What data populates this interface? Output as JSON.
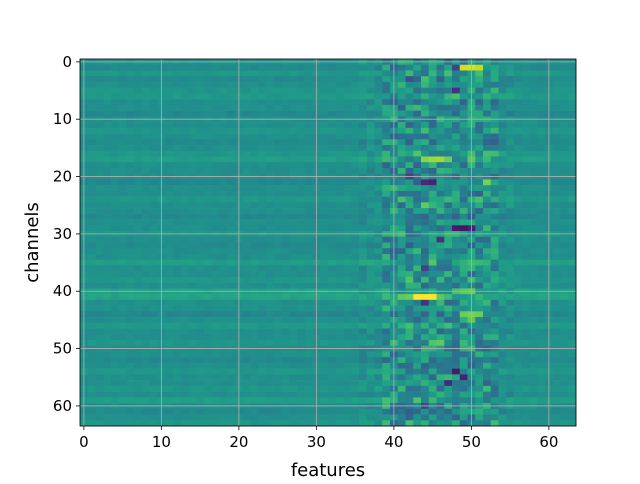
{
  "chart_data": {
    "type": "heatmap",
    "title": "",
    "xlabel": "features",
    "ylabel": "channels",
    "xlim": [
      -0.5,
      63.5
    ],
    "ylim": [
      63.5,
      -0.5
    ],
    "y_inverted": true,
    "x_ticks": [
      0,
      10,
      20,
      30,
      40,
      50,
      60
    ],
    "y_ticks": [
      0,
      10,
      20,
      30,
      40,
      50,
      60
    ],
    "x_tick_labels": [
      "0",
      "10",
      "20",
      "30",
      "40",
      "50",
      "60"
    ],
    "y_tick_labels": [
      "0",
      "10",
      "20",
      "30",
      "40",
      "50",
      "60"
    ],
    "grid": true,
    "colormap": "viridis",
    "value_range": [
      -1,
      1
    ],
    "dimensions": {
      "features": 64,
      "channels": 64
    },
    "background_value": 0.0,
    "row_offsets": [
      {
        "channel": 0,
        "value": 0.02
      },
      {
        "channel": 1,
        "value": -0.05
      },
      {
        "channel": 2,
        "value": 0.06
      },
      {
        "channel": 3,
        "value": -0.04
      },
      {
        "channel": 5,
        "value": 0.05
      },
      {
        "channel": 6,
        "value": 0.08
      },
      {
        "channel": 9,
        "value": -0.06
      },
      {
        "channel": 12,
        "value": 0.06
      },
      {
        "channel": 14,
        "value": -0.05
      },
      {
        "channel": 16,
        "value": 0.06
      },
      {
        "channel": 17,
        "value": 0.12
      },
      {
        "channel": 21,
        "value": -0.06
      },
      {
        "channel": 24,
        "value": 0.07
      },
      {
        "channel": 27,
        "value": -0.05
      },
      {
        "channel": 30,
        "value": 0.06
      },
      {
        "channel": 32,
        "value": -0.04
      },
      {
        "channel": 35,
        "value": 0.12
      },
      {
        "channel": 38,
        "value": 0.05
      },
      {
        "channel": 40,
        "value": 0.14
      },
      {
        "channel": 41,
        "value": 0.18
      },
      {
        "channel": 44,
        "value": -0.06
      },
      {
        "channel": 46,
        "value": 0.08
      },
      {
        "channel": 49,
        "value": 0.05
      },
      {
        "channel": 52,
        "value": -0.05
      },
      {
        "channel": 54,
        "value": 0.06
      },
      {
        "channel": 57,
        "value": 0.05
      },
      {
        "channel": 59,
        "value": 0.12
      },
      {
        "channel": 61,
        "value": -0.05
      },
      {
        "channel": 63,
        "value": 0.05
      }
    ],
    "hot_cells": [
      {
        "channel": 1,
        "feature": 49,
        "value": 0.85
      },
      {
        "channel": 1,
        "feature": 50,
        "value": 0.88
      },
      {
        "channel": 1,
        "feature": 51,
        "value": 0.8
      },
      {
        "channel": 1,
        "feature": 48,
        "value": -0.6
      },
      {
        "channel": 3,
        "feature": 44,
        "value": 0.4
      },
      {
        "channel": 3,
        "feature": 42,
        "value": -0.5
      },
      {
        "channel": 5,
        "feature": 48,
        "value": -0.7
      },
      {
        "channel": 16,
        "feature": 43,
        "value": 0.45
      },
      {
        "channel": 17,
        "feature": 44,
        "value": 0.65
      },
      {
        "channel": 17,
        "feature": 45,
        "value": 0.7
      },
      {
        "channel": 17,
        "feature": 46,
        "value": 0.72
      },
      {
        "channel": 17,
        "feature": 47,
        "value": 0.55
      },
      {
        "channel": 17,
        "feature": 50,
        "value": 0.5
      },
      {
        "channel": 20,
        "feature": 42,
        "value": -0.6
      },
      {
        "channel": 21,
        "feature": 44,
        "value": -0.75
      },
      {
        "channel": 21,
        "feature": 45,
        "value": -0.8
      },
      {
        "channel": 21,
        "feature": 52,
        "value": 0.6
      },
      {
        "channel": 25,
        "feature": 44,
        "value": 0.5
      },
      {
        "channel": 29,
        "feature": 48,
        "value": -0.85
      },
      {
        "channel": 29,
        "feature": 49,
        "value": -0.88
      },
      {
        "channel": 29,
        "feature": 50,
        "value": -0.8
      },
      {
        "channel": 31,
        "feature": 46,
        "value": -0.7
      },
      {
        "channel": 36,
        "feature": 44,
        "value": -0.6
      },
      {
        "channel": 38,
        "feature": 42,
        "value": 0.45
      },
      {
        "channel": 40,
        "feature": 49,
        "value": 0.5
      },
      {
        "channel": 40,
        "feature": 50,
        "value": 0.55
      },
      {
        "channel": 41,
        "feature": 43,
        "value": 1.0
      },
      {
        "channel": 41,
        "feature": 44,
        "value": 1.0
      },
      {
        "channel": 41,
        "feature": 45,
        "value": 1.0
      },
      {
        "channel": 41,
        "feature": 41,
        "value": 0.5
      },
      {
        "channel": 41,
        "feature": 42,
        "value": 0.55
      },
      {
        "channel": 41,
        "feature": 46,
        "value": 0.5
      },
      {
        "channel": 42,
        "feature": 44,
        "value": -0.7
      },
      {
        "channel": 44,
        "feature": 49,
        "value": 0.55
      },
      {
        "channel": 44,
        "feature": 50,
        "value": 0.6
      },
      {
        "channel": 44,
        "feature": 51,
        "value": 0.55
      },
      {
        "channel": 45,
        "feature": 50,
        "value": 0.5
      },
      {
        "channel": 49,
        "feature": 45,
        "value": 0.45
      },
      {
        "channel": 49,
        "feature": 46,
        "value": 0.5
      },
      {
        "channel": 54,
        "feature": 48,
        "value": -0.85
      },
      {
        "channel": 55,
        "feature": 49,
        "value": -0.8
      },
      {
        "channel": 56,
        "feature": 47,
        "value": -0.75
      },
      {
        "channel": 59,
        "feature": 39,
        "value": 0.4
      },
      {
        "channel": 60,
        "feature": 44,
        "value": -0.6
      }
    ]
  }
}
